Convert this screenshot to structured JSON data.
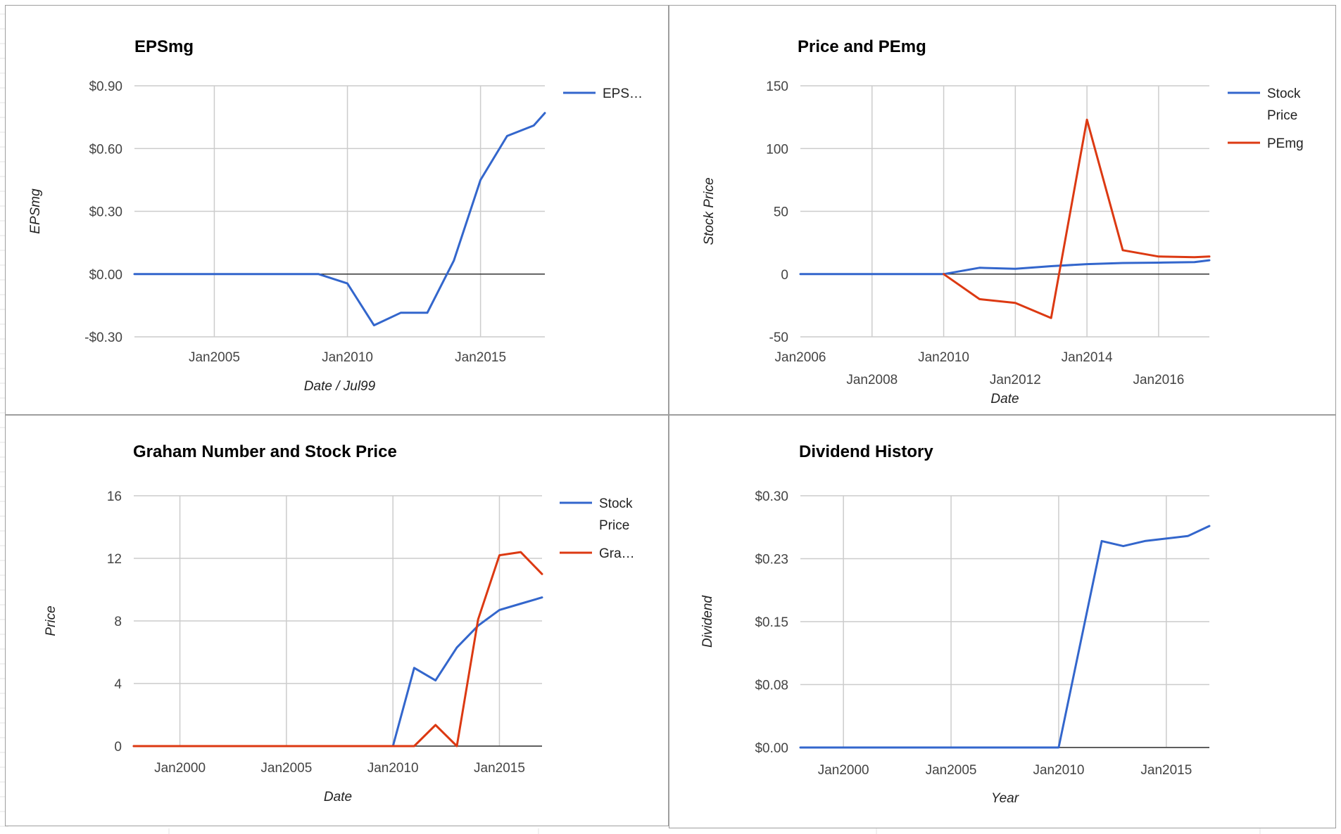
{
  "colors": {
    "blue": "#3366cc",
    "red": "#dc3912",
    "grid": "#cccccc",
    "baseline": "#333333"
  },
  "chart_data": [
    {
      "type": "line",
      "title": "EPSmg",
      "xlabel": "Date / Jul99",
      "ylabel": "EPSmg",
      "xlim": [
        "2002-01",
        "2017-06"
      ],
      "ylim": [
        -0.3,
        0.9
      ],
      "y_ticks": [
        -0.3,
        0.0,
        0.3,
        0.6,
        0.9
      ],
      "y_tick_labels": [
        "-$0.30",
        "$0.00",
        "$0.30",
        "$0.60",
        "$0.90"
      ],
      "x_ticks": [
        "2005-01",
        "2010-01",
        "2015-01"
      ],
      "x_tick_labels": [
        "Jan2005",
        "Jan2010",
        "Jan2015"
      ],
      "x_gridlines": [
        "2005-01",
        "2010-01",
        "2015-01"
      ],
      "legend_position": "right",
      "grid": true,
      "series": [
        {
          "name": "EPS…",
          "color": "#3366cc",
          "points": [
            [
              "2002-01",
              0.0
            ],
            [
              "2008-12",
              0.0
            ],
            [
              "2010-01",
              -0.045
            ],
            [
              "2011-01",
              -0.245
            ],
            [
              "2012-01",
              -0.185
            ],
            [
              "2013-01",
              -0.185
            ],
            [
              "2014-01",
              0.065
            ],
            [
              "2015-01",
              0.45
            ],
            [
              "2016-01",
              0.66
            ],
            [
              "2017-01",
              0.71
            ],
            [
              "2017-06",
              0.77
            ]
          ]
        }
      ]
    },
    {
      "type": "line",
      "title": "Price and PEmg",
      "xlabel": "Date",
      "ylabel": "Stock Price",
      "xlim": [
        "2006-01",
        "2017-06"
      ],
      "ylim": [
        -50,
        150
      ],
      "y_ticks": [
        -50,
        0,
        50,
        100,
        150
      ],
      "y_tick_labels": [
        "-50",
        "0",
        "50",
        "100",
        "150"
      ],
      "x_ticks": [
        "2006-01",
        "2008-01",
        "2010-01",
        "2012-01",
        "2014-01",
        "2016-01"
      ],
      "x_tick_labels": [
        "Jan2006",
        "Jan2008",
        "Jan2010",
        "Jan2012",
        "Jan2014",
        "Jan2016"
      ],
      "x_gridlines": [
        "2008-01",
        "2010-01",
        "2012-01",
        "2014-01",
        "2016-01"
      ],
      "legend_position": "right",
      "grid": true,
      "series": [
        {
          "name": "Stock Price",
          "color": "#3366cc",
          "points": [
            [
              "2006-01",
              0
            ],
            [
              "2010-01",
              0
            ],
            [
              "2011-01",
              5
            ],
            [
              "2012-01",
              4.2
            ],
            [
              "2013-01",
              6.3
            ],
            [
              "2014-01",
              7.9
            ],
            [
              "2015-01",
              8.8
            ],
            [
              "2016-01",
              9.1
            ],
            [
              "2017-01",
              9.5
            ],
            [
              "2017-06",
              11
            ]
          ]
        },
        {
          "name": "PEmg",
          "color": "#dc3912",
          "points": [
            [
              "2010-01",
              0
            ],
            [
              "2011-01",
              -20
            ],
            [
              "2012-01",
              -23
            ],
            [
              "2013-01",
              -35
            ],
            [
              "2014-01",
              123
            ],
            [
              "2015-01",
              19
            ],
            [
              "2016-01",
              14
            ],
            [
              "2017-01",
              13.5
            ],
            [
              "2017-06",
              14
            ]
          ]
        }
      ]
    },
    {
      "type": "line",
      "title": "Graham Number and Stock Price",
      "xlabel": "Date",
      "ylabel": "Price",
      "xlim": [
        "1997-11",
        "2017-01"
      ],
      "ylim": [
        0,
        16
      ],
      "y_ticks": [
        0,
        4,
        8,
        12,
        16
      ],
      "y_tick_labels": [
        "0",
        "4",
        "8",
        "12",
        "16"
      ],
      "x_ticks": [
        "2000-01",
        "2005-01",
        "2010-01",
        "2015-01"
      ],
      "x_tick_labels": [
        "Jan2000",
        "Jan2005",
        "Jan2010",
        "Jan2015"
      ],
      "x_gridlines": [
        "2000-01",
        "2005-01",
        "2010-01",
        "2015-01"
      ],
      "legend_position": "right",
      "grid": true,
      "series": [
        {
          "name": "Stock Price",
          "color": "#3366cc",
          "points": [
            [
              "1997-11",
              0
            ],
            [
              "2010-01",
              0
            ],
            [
              "2011-01",
              5
            ],
            [
              "2012-01",
              4.2
            ],
            [
              "2013-01",
              6.3
            ],
            [
              "2014-01",
              7.7
            ],
            [
              "2015-01",
              8.7
            ],
            [
              "2016-01",
              9.1
            ],
            [
              "2017-01",
              9.5
            ]
          ]
        },
        {
          "name": "Gra…",
          "color": "#dc3912",
          "points": [
            [
              "1997-11",
              0
            ],
            [
              "2011-01",
              0
            ],
            [
              "2012-01",
              1.35
            ],
            [
              "2013-01",
              0
            ],
            [
              "2014-01",
              8.1
            ],
            [
              "2015-01",
              12.2
            ],
            [
              "2016-01",
              12.4
            ],
            [
              "2017-01",
              11
            ]
          ]
        }
      ]
    },
    {
      "type": "line",
      "title": "Dividend History",
      "xlabel": "Year",
      "ylabel": "Dividend",
      "xlim": [
        "1998-01",
        "2017-01"
      ],
      "ylim": [
        0,
        0.3
      ],
      "y_ticks": [
        0,
        0.075,
        0.15,
        0.225,
        0.3
      ],
      "y_tick_labels": [
        "$0.00",
        "$0.08",
        "$0.15",
        "$0.23",
        "$0.30"
      ],
      "x_ticks": [
        "2000-01",
        "2005-01",
        "2010-01",
        "2015-01"
      ],
      "x_tick_labels": [
        "Jan2000",
        "Jan2005",
        "Jan2010",
        "Jan2015"
      ],
      "x_gridlines": [
        "2000-01",
        "2005-01",
        "2010-01",
        "2015-01"
      ],
      "legend_position": "none",
      "grid": true,
      "series": [
        {
          "color": "#3366cc",
          "points": [
            [
              "1998-01",
              0
            ],
            [
              "2010-01",
              0
            ],
            [
              "2012-01",
              0.246
            ],
            [
              "2013-01",
              0.24
            ],
            [
              "2014-01",
              0.246
            ],
            [
              "2016-01",
              0.252
            ],
            [
              "2017-01",
              0.264
            ]
          ]
        }
      ]
    }
  ]
}
